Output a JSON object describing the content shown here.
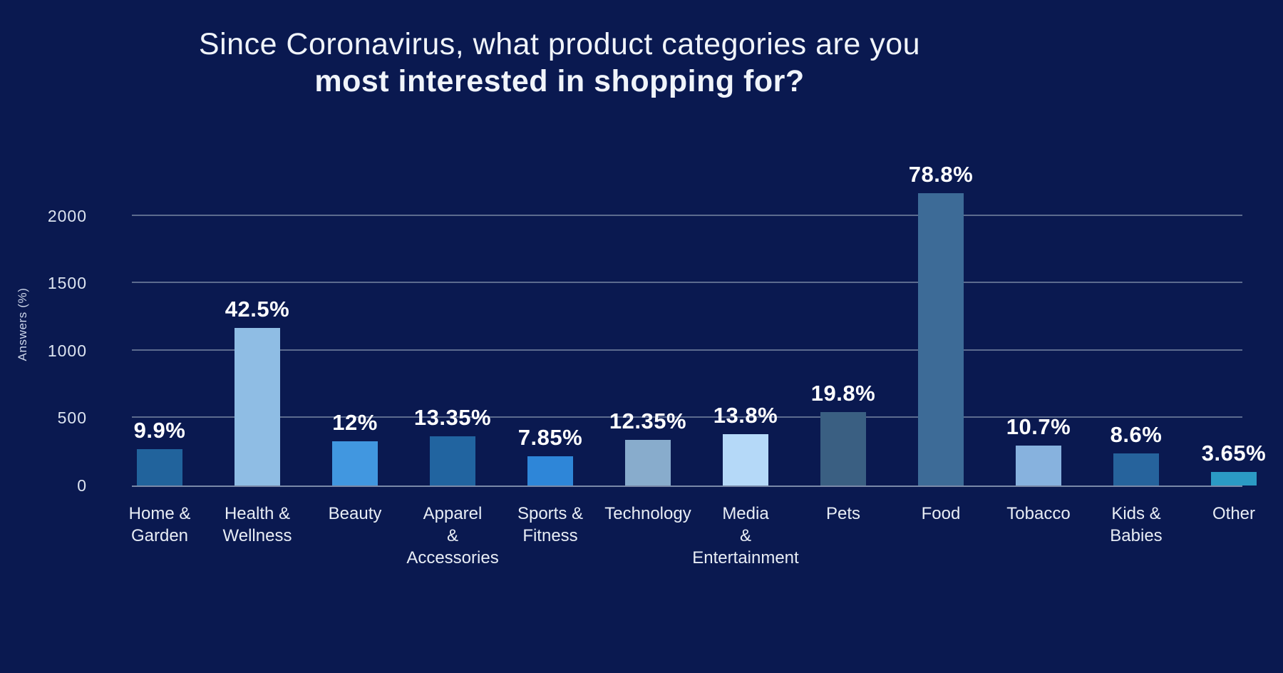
{
  "header": {
    "line1": "Since Coronavirus, what product categories are you",
    "line2": "most interested in shopping for?"
  },
  "chart_data": {
    "type": "bar",
    "title": "Since Coronavirus, what product categories are you most interested in shopping for?",
    "xlabel": "",
    "ylabel": "Answers (%)",
    "yticks": [
      0,
      500,
      1000,
      1500,
      2000
    ],
    "ylim": [
      0,
      2280
    ],
    "grid": true,
    "legend": false,
    "categories": [
      "Home & Garden",
      "Health & Wellness",
      "Beauty",
      "Apparel & Accessories",
      "Sports & Fitness",
      "Technology",
      "Media & Entertainment",
      "Pets",
      "Food",
      "Tobacco",
      "Kids & Babies",
      "Other"
    ],
    "category_label_lines": [
      [
        "Home &",
        "Garden"
      ],
      [
        "Health &",
        "Wellness"
      ],
      [
        "Beauty"
      ],
      [
        "Apparel",
        "&",
        "Accessories"
      ],
      [
        "Sports &",
        "Fitness"
      ],
      [
        "Technology"
      ],
      [
        "Media",
        "&",
        "Entertainment"
      ],
      [
        "Pets"
      ],
      [
        "Food"
      ],
      [
        "Tobacco"
      ],
      [
        "Kids &",
        "Babies"
      ],
      [
        "Other"
      ]
    ],
    "values_percent": [
      9.9,
      42.5,
      12,
      13.35,
      7.85,
      12.35,
      13.8,
      19.8,
      78.8,
      10.7,
      8.6,
      3.65
    ],
    "value_labels": [
      "9.9%",
      "42.5%",
      "12%",
      "13.35%",
      "7.85%",
      "12.35%",
      "13.8%",
      "19.8%",
      "78.8%",
      "10.7%",
      "8.6%",
      "3.65%"
    ],
    "values_answers_est": [
      272,
      1169,
      330,
      367,
      216,
      340,
      380,
      545,
      2167,
      294,
      237,
      100
    ],
    "bar_colors": [
      "#21639c",
      "#8fbde4",
      "#4197e0",
      "#2164a0",
      "#2e86d8",
      "#88accc",
      "#b5d9f8",
      "#3a5f82",
      "#3d6b97",
      "#87b2de",
      "#26639c",
      "#2b9ac4"
    ]
  },
  "colors": {
    "background": "#0a1950",
    "title_text": "#f0f4fa",
    "axis_text": "#dde4f0",
    "category_text": "#e8edf5",
    "value_label_text": "#ffffff",
    "gridline": "#5c6b8e",
    "axis_line": "#7a89a8"
  }
}
